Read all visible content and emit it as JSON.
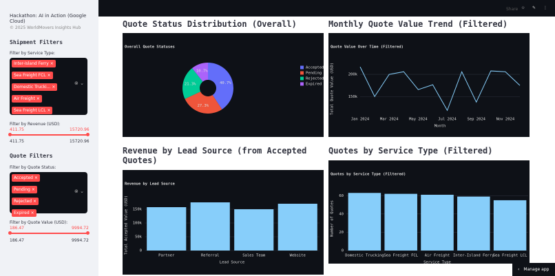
{
  "sidebar": {
    "app_title": "Hackathon: AI in Action (Google Cloud)",
    "copyright": "© 2025 WorldMovers Insights Hub",
    "shipment_filters": {
      "heading": "Shipment Filters",
      "service_label": "Filter by Service Type:",
      "service_tags": [
        "Inter-Island Ferry",
        "Sea Freight FCL",
        "Domestic Trucki...",
        "Air Freight",
        "Sea Freight LCL"
      ],
      "revenue_label": "Filter by Revenue (USD):",
      "revenue_min": "411.75",
      "revenue_max": "15720.96"
    },
    "quote_filters": {
      "heading": "Quote Filters",
      "status_label": "Filter by Quote Status:",
      "status_tags": [
        "Accepted",
        "Pending",
        "Rejected",
        "Expired"
      ],
      "value_label": "Filter by Quote Value (USD):",
      "value_min": "186.47",
      "value_max": "9994.72"
    }
  },
  "toolbar": {
    "share": "Share"
  },
  "manage_app": "Manage app",
  "headings": [
    "Quote Status Distribution (Overall)",
    "Monthly Quote Value Trend (Filtered)",
    "Revenue by Lead Source (from Accepted Quotes)",
    "Quotes by Service Type (Filtered)"
  ],
  "chart_data": [
    {
      "type": "pie",
      "title": "Overall Quote Statuses",
      "categories": [
        "Accepted",
        "Pending",
        "Rejected",
        "Expired"
      ],
      "values": [
        40.7,
        27.3,
        21.3,
        10.7
      ],
      "value_labels": [
        "40.7%",
        "27.3%",
        "21.3%",
        "10.7%"
      ],
      "colors": [
        "#636efa",
        "#ef553b",
        "#00cc96",
        "#ab63fa"
      ],
      "legend": "right"
    },
    {
      "type": "line",
      "title": "Quote Value Over Time (Filtered)",
      "x_label": "Month",
      "y_label": "Total Quote Value (USD)",
      "categories": [
        "Jan 2024",
        null,
        "Mar 2024",
        null,
        "May 2024",
        null,
        "Jul 2024",
        null,
        "Sep 2024",
        null,
        "Nov 2024",
        null
      ],
      "values": [
        217000,
        150000,
        200000,
        206000,
        165600,
        176600,
        118750,
        206000,
        137500,
        207800,
        206000,
        175000
      ],
      "color": "#87cefa",
      "ylim": [
        110000,
        225000
      ],
      "yticks": [
        {
          "value": 150000,
          "label": "150k"
        },
        {
          "value": 200000,
          "label": "200k"
        }
      ],
      "grid": true
    },
    {
      "type": "bar",
      "title": "Revenue by Lead Source",
      "x_label": "Lead Source",
      "y_label": "Total Accepted Value (USD)",
      "categories": [
        "Partner",
        "Referral",
        "Sales Team",
        "Website"
      ],
      "values": [
        157500,
        175000,
        150000,
        170000
      ],
      "color": "#87cefa",
      "ylim": [
        0,
        185000
      ],
      "yticks": [
        0,
        {
          "value": 50000,
          "label": "50k"
        },
        {
          "value": 100000,
          "label": "100k"
        },
        {
          "value": 150000,
          "label": "150k"
        }
      ],
      "grid": true
    },
    {
      "type": "bar",
      "title": "Quotes by Service Type (Filtered)",
      "x_label": "Service Type",
      "y_label": "Number of Quotes",
      "categories": [
        "Domestic Trucking",
        "Sea Freight FCL",
        "Air Freight",
        "Inter-Island Ferry",
        "Sea Freight LCL"
      ],
      "values": [
        63,
        62,
        61,
        59,
        55
      ],
      "color": "#87cefa",
      "ylim": [
        0,
        70
      ],
      "yticks": [
        0,
        20,
        40,
        60
      ],
      "grid": true
    }
  ]
}
